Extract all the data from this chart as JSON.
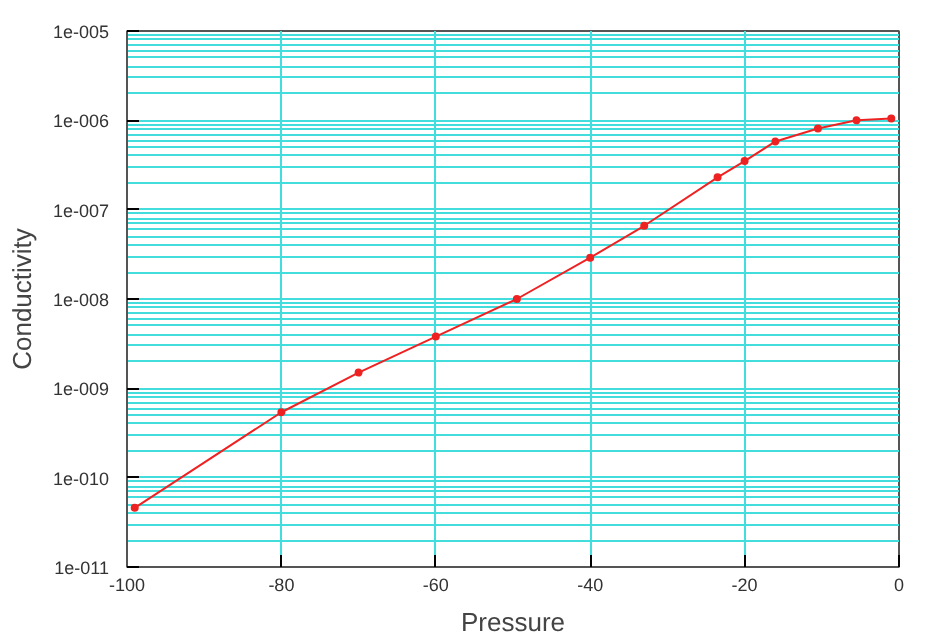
{
  "chart_data": {
    "type": "line",
    "xlabel": "Pressure",
    "ylabel": "Conductivity",
    "x": [
      -99,
      -80,
      -70,
      -60,
      -49.5,
      -40,
      -33,
      -23.5,
      -20,
      -16,
      -10.5,
      -5.5,
      -1
    ],
    "series": [
      {
        "color": "#ee2222",
        "values": [
          4.6e-11,
          5.4e-10,
          1.5e-09,
          3.8e-09,
          1e-08,
          2.9e-08,
          6.6e-08,
          2.3e-07,
          3.5e-07,
          5.8e-07,
          8.1e-07,
          1e-06,
          1.05e-06
        ]
      }
    ],
    "xlim": [
      -100,
      0
    ],
    "ylim": [
      1e-11,
      1e-05
    ],
    "log": "y",
    "xticks": [
      -100,
      -80,
      -60,
      -40,
      -20,
      0
    ],
    "yticks": [
      {
        "value": 1e-11,
        "label": "1e-011"
      },
      {
        "value": 1e-10,
        "label": "1e-010"
      },
      {
        "value": 1e-09,
        "label": "1e-009"
      },
      {
        "value": 1e-08,
        "label": "1e-008"
      },
      {
        "value": 1e-07,
        "label": "1e-007"
      },
      {
        "value": 1e-06,
        "label": "1e-006"
      },
      {
        "value": 1e-05,
        "label": "1e-005"
      }
    ],
    "grid": true,
    "marker": "circle",
    "line_style": "solid"
  }
}
